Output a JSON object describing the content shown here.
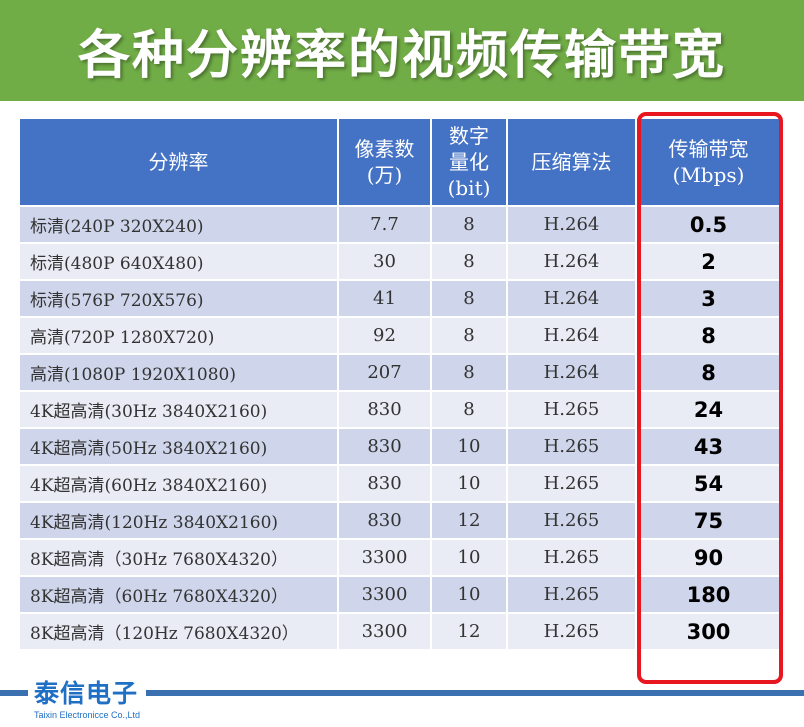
{
  "title": "各种分辨率的视频传输带宽",
  "headers": {
    "resolution": "分辨率",
    "pixels": [
      "像素数",
      "(万)"
    ],
    "quantization": [
      "数字",
      "量化",
      "(bit)"
    ],
    "codec": "压缩算法",
    "bandwidth": [
      "传输带宽",
      "(Mbps)"
    ]
  },
  "rows": [
    {
      "resolution": "标清(240P 320X240)",
      "pixels": "7.7",
      "bits": "8",
      "codec": "H.264",
      "bandwidth": "0.5"
    },
    {
      "resolution": "标清(480P 640X480)",
      "pixels": "30",
      "bits": "8",
      "codec": "H.264",
      "bandwidth": "2"
    },
    {
      "resolution": "标清(576P 720X576)",
      "pixels": "41",
      "bits": "8",
      "codec": "H.264",
      "bandwidth": "3"
    },
    {
      "resolution": "高清(720P 1280X720)",
      "pixels": "92",
      "bits": "8",
      "codec": "H.264",
      "bandwidth": "8"
    },
    {
      "resolution": "高清(1080P 1920X1080)",
      "pixels": "207",
      "bits": "8",
      "codec": "H.264",
      "bandwidth": "8"
    },
    {
      "resolution": "4K超高清(30Hz 3840X2160)",
      "pixels": "830",
      "bits": "8",
      "codec": "H.265",
      "bandwidth": "24"
    },
    {
      "resolution": "4K超高清(50Hz 3840X2160)",
      "pixels": "830",
      "bits": "10",
      "codec": "H.265",
      "bandwidth": "43"
    },
    {
      "resolution": "4K超高清(60Hz 3840X2160)",
      "pixels": "830",
      "bits": "10",
      "codec": "H.265",
      "bandwidth": "54"
    },
    {
      "resolution": "4K超高清(120Hz 3840X2160)",
      "pixels": "830",
      "bits": "12",
      "codec": "H.265",
      "bandwidth": "75"
    },
    {
      "resolution": "8K超高清（30Hz 7680X4320）",
      "pixels": "3300",
      "bits": "10",
      "codec": "H.265",
      "bandwidth": "90"
    },
    {
      "resolution": "8K超高清（60Hz 7680X4320）",
      "pixels": "3300",
      "bits": "10",
      "codec": "H.265",
      "bandwidth": "180"
    },
    {
      "resolution": "8K超高清（120Hz 7680X4320）",
      "pixels": "3300",
      "bits": "12",
      "codec": "H.265",
      "bandwidth": "300"
    }
  ],
  "logo": {
    "name": "泰信电子",
    "subtitle": "Taixin Electronicce Co.,Ltd"
  },
  "colors": {
    "title_bar": "#71ad47",
    "header": "#4472c4",
    "row_dark": "#cfd5ea",
    "row_light": "#e9ebf5",
    "highlight": "#e8161f",
    "brand": "#1f6fc4"
  }
}
